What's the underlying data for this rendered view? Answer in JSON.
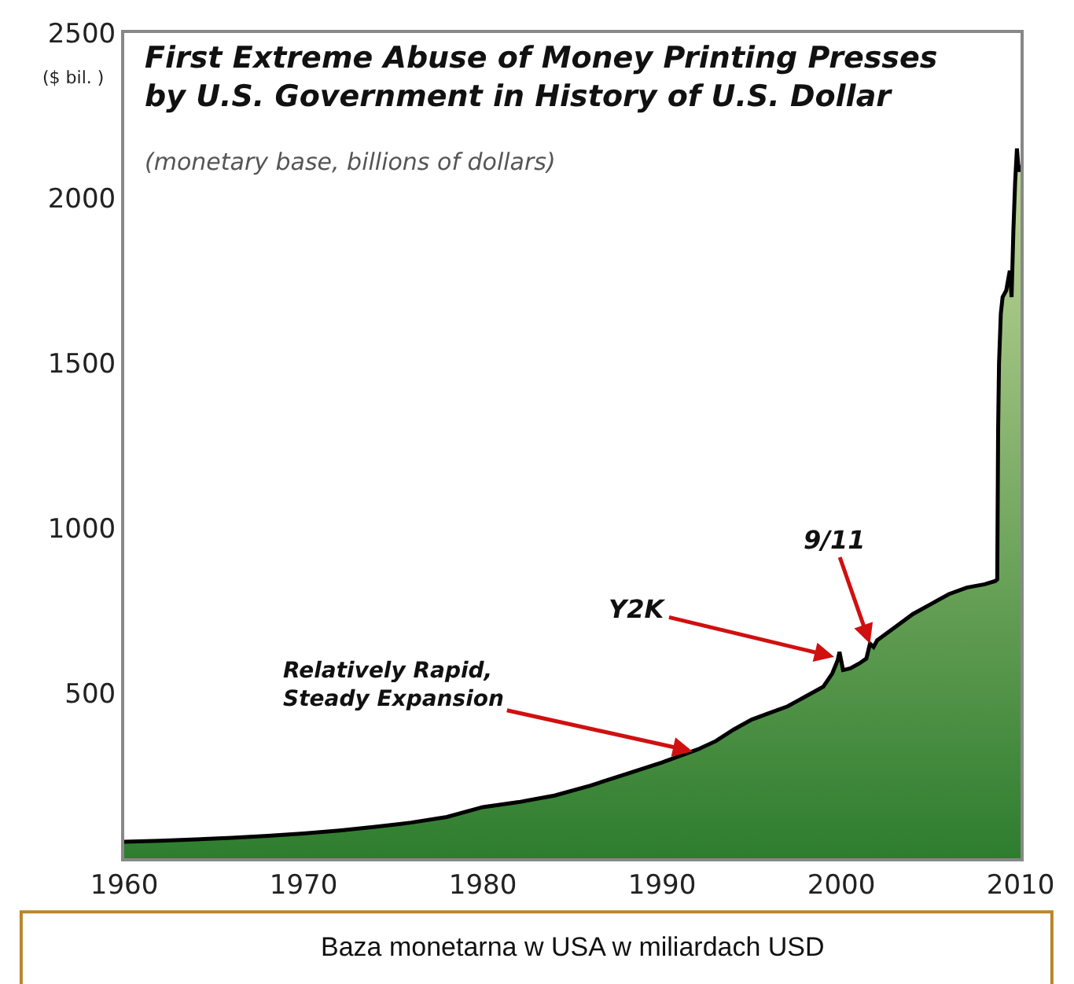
{
  "chart_data": {
    "type": "area",
    "title": "First Extreme Abuse of Money Printing Presses\nby U.S. Government in History of U.S. Dollar",
    "subtitle": "(monetary base, billions of dollars)",
    "ylabel": "($ bil. )",
    "x": [
      1960,
      1962,
      1964,
      1966,
      1968,
      1970,
      1972,
      1974,
      1976,
      1978,
      1980,
      1982,
      1984,
      1986,
      1988,
      1990,
      1992,
      1993,
      1994,
      1995,
      1996,
      1997,
      1998,
      1999,
      1999.5,
      1999.8,
      1999.9,
      2000.1,
      2000.5,
      2001,
      2001.4,
      2001.6,
      2001.8,
      2002,
      2003,
      2004,
      2005,
      2006,
      2007,
      2008,
      2008.6,
      2008.7,
      2008.75,
      2008.8,
      2008.9,
      2009,
      2009.2,
      2009.4,
      2009.5,
      2009.6,
      2009.7,
      2009.8,
      2009.9,
      2010
    ],
    "series": [
      {
        "color": "#2e7d2e",
        "values": [
          50,
          53,
          57,
          62,
          68,
          75,
          84,
          95,
          108,
          125,
          155,
          170,
          190,
          220,
          255,
          290,
          330,
          355,
          390,
          420,
          440,
          460,
          490,
          520,
          560,
          600,
          625,
          570,
          575,
          590,
          605,
          650,
          640,
          660,
          700,
          740,
          770,
          800,
          820,
          830,
          840,
          845,
          1300,
          1500,
          1650,
          1700,
          1720,
          1780,
          1700,
          1900,
          2050,
          2150,
          2080,
          2100
        ]
      }
    ],
    "xlim": [
      1960,
      2010
    ],
    "ylim": [
      0,
      2500
    ],
    "xticks": [
      1960,
      1970,
      1980,
      1990,
      2000,
      2010
    ],
    "yticks": [
      500,
      1000,
      1500,
      2000,
      2500
    ],
    "legend": false,
    "annotations": [
      {
        "text": "Relatively Rapid,\nSteady Expansion",
        "x": 1991.7,
        "y": 324
      },
      {
        "text": "Y2K",
        "x": 1999.6,
        "y": 610
      },
      {
        "text": "9/11",
        "x": 2001.6,
        "y": 650
      },
      "Baza monetarna w USA w miliardach USD"
    ]
  }
}
